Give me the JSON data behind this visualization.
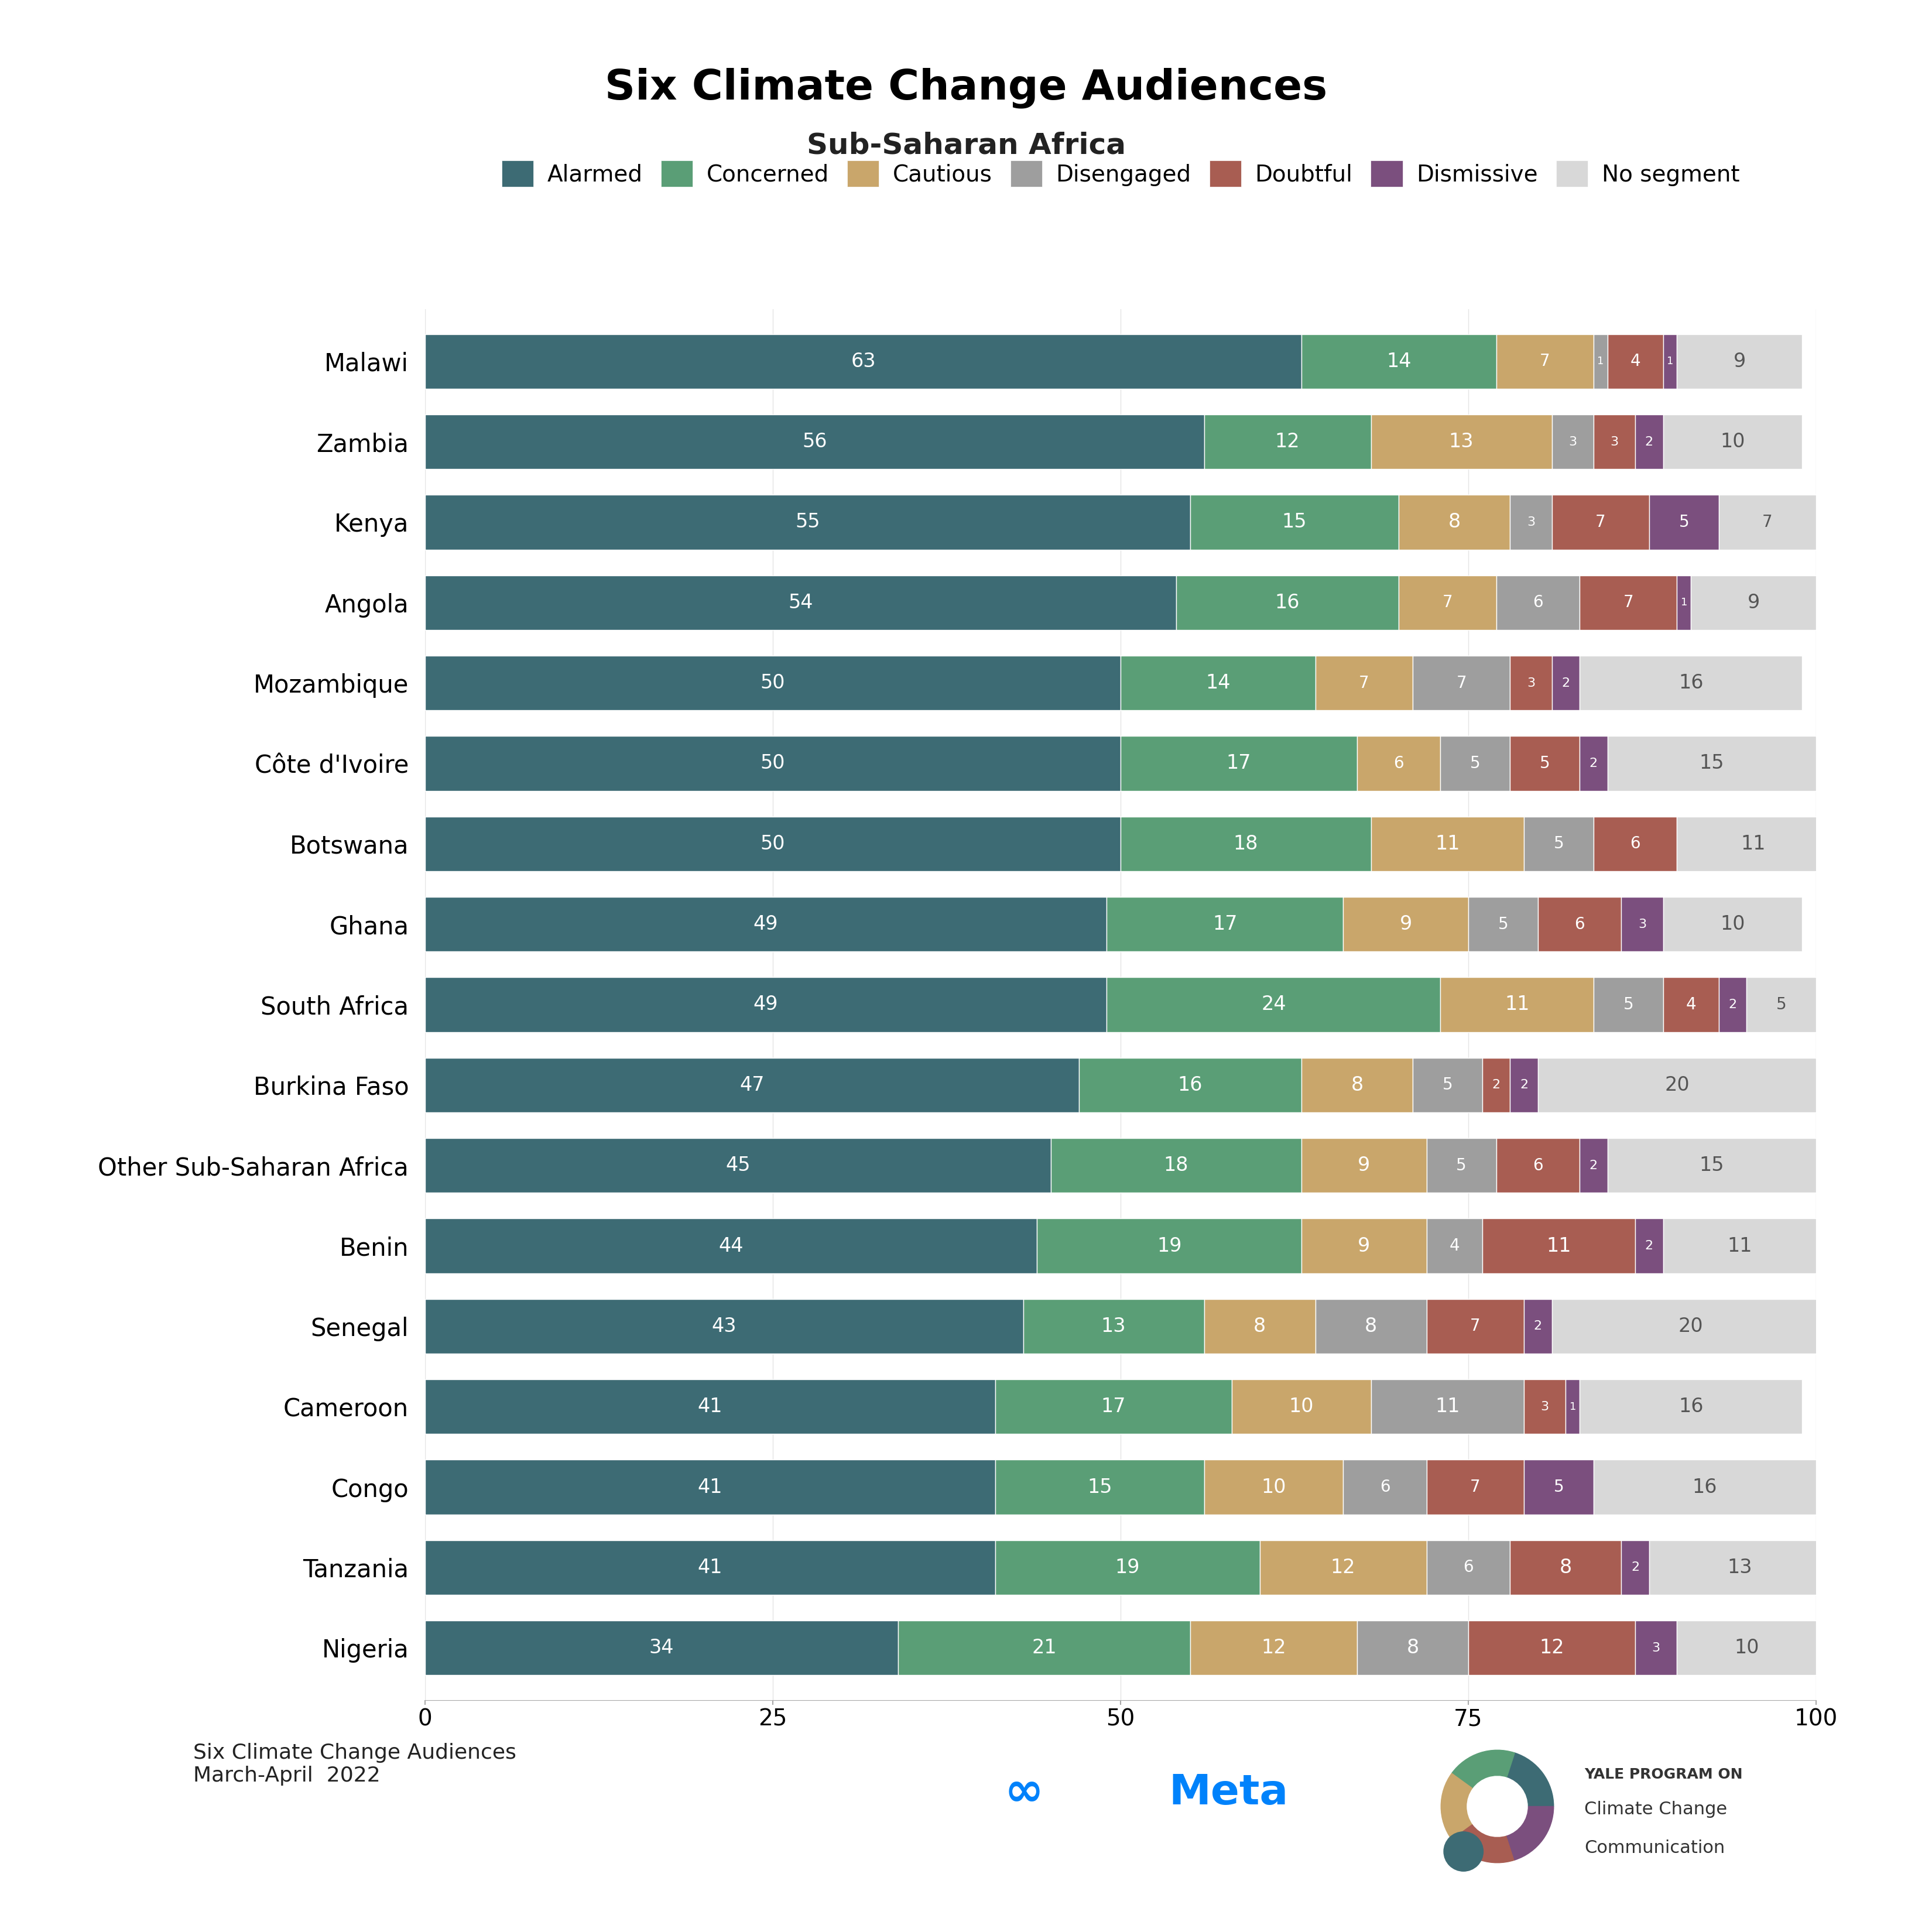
{
  "title": "Six Climate Change Audiences",
  "subtitle": "Sub-Saharan Africa",
  "footer_left": "Six Climate Change Audiences\nMarch-April  2022",
  "categories": [
    "Malawi",
    "Zambia",
    "Kenya",
    "Angola",
    "Mozambique",
    "Côte d'Ivoire",
    "Botswana",
    "Ghana",
    "South Africa",
    "Burkina Faso",
    "Other Sub-Saharan Africa",
    "Benin",
    "Senegal",
    "Cameroon",
    "Congo",
    "Tanzania",
    "Nigeria"
  ],
  "segments": [
    "Alarmed",
    "Concerned",
    "Cautious",
    "Disengaged",
    "Doubtful",
    "Dismissive",
    "No segment"
  ],
  "colors": [
    "#3d6b74",
    "#5a9e76",
    "#c9a66b",
    "#9e9e9e",
    "#a85d52",
    "#7b4f7e",
    "#d8d8d8"
  ],
  "data": [
    [
      63,
      14,
      7,
      1,
      4,
      1,
      9
    ],
    [
      56,
      12,
      13,
      3,
      3,
      2,
      10
    ],
    [
      55,
      15,
      8,
      3,
      7,
      5,
      7
    ],
    [
      54,
      16,
      7,
      6,
      7,
      1,
      9
    ],
    [
      50,
      14,
      7,
      7,
      3,
      2,
      16
    ],
    [
      50,
      17,
      6,
      5,
      5,
      2,
      15
    ],
    [
      50,
      18,
      11,
      5,
      6,
      0,
      11
    ],
    [
      49,
      17,
      9,
      5,
      6,
      3,
      10
    ],
    [
      49,
      24,
      11,
      5,
      4,
      2,
      5
    ],
    [
      47,
      16,
      8,
      5,
      2,
      2,
      20
    ],
    [
      45,
      18,
      9,
      5,
      6,
      2,
      15
    ],
    [
      44,
      19,
      9,
      4,
      11,
      2,
      11
    ],
    [
      43,
      13,
      8,
      8,
      7,
      2,
      20
    ],
    [
      41,
      17,
      10,
      11,
      3,
      1,
      16
    ],
    [
      41,
      15,
      10,
      6,
      7,
      5,
      16
    ],
    [
      41,
      19,
      12,
      6,
      8,
      2,
      13
    ],
    [
      34,
      21,
      12,
      8,
      12,
      3,
      10
    ]
  ],
  "xlim": [
    0,
    100
  ],
  "xticks": [
    0,
    25,
    50,
    75,
    100
  ],
  "bar_height": 0.68,
  "background_color": "#ffffff",
  "title_fontsize": 52,
  "subtitle_fontsize": 36,
  "legend_fontsize": 28,
  "label_fontsize": 24,
  "tick_fontsize": 28,
  "country_fontsize": 30
}
